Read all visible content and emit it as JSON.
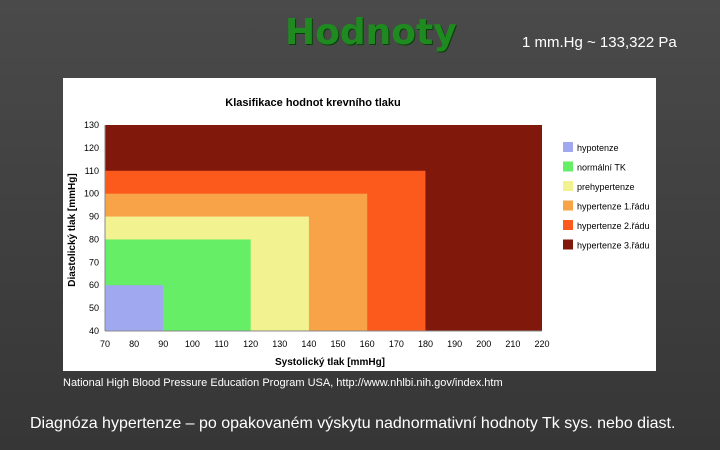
{
  "slide": {
    "title": "Hodnoty",
    "unit_note": "1 mm.Hg ~ 133,322 Pa",
    "source_note": "National High Blood Pressure Education Program USA, http://www.nhlbi.nih.gov/index.htm",
    "diagnosis_note": "Diagnóza hypertenze – po opakovaném  výskytu nadnormativní hodnoty Tk sys. nebo diast."
  },
  "colors": {
    "title": "#1f8a1f",
    "background": "#404040",
    "hypotenze": "#a0a8f0",
    "normalni": "#66ee66",
    "prehypertenze": "#f2f291",
    "hyp1": "#f8a347",
    "hyp2": "#fc5a1c",
    "hyp3": "#80180c"
  },
  "chart_data": {
    "type": "area",
    "title": "Klasifikace hodnot krevního tlaku",
    "xlabel": "Systolický tlak [mmHg]",
    "ylabel": "Diastolický tlak [mmHg]",
    "xlim": [
      70,
      220
    ],
    "ylim": [
      40,
      130
    ],
    "xticks": [
      70,
      80,
      90,
      100,
      110,
      120,
      130,
      140,
      150,
      160,
      170,
      180,
      190,
      200,
      210,
      220
    ],
    "yticks": [
      40,
      50,
      60,
      70,
      80,
      90,
      100,
      110,
      120,
      130
    ],
    "legend_position": "right",
    "zones": [
      {
        "name": "hypertenze 3.řádu",
        "color_key": "hyp3",
        "x_max": 220,
        "y_max": 130
      },
      {
        "name": "hypertenze 2.řádu",
        "color_key": "hyp2",
        "x_max": 180,
        "y_max": 110
      },
      {
        "name": "hypertenze 1.řádu",
        "color_key": "hyp1",
        "x_max": 160,
        "y_max": 100
      },
      {
        "name": "prehypertenze",
        "color_key": "prehypertenze",
        "x_max": 140,
        "y_max": 90
      },
      {
        "name": "normální TK",
        "color_key": "normalni",
        "x_max": 120,
        "y_max": 80
      },
      {
        "name": "hypotenze",
        "color_key": "hypotenze",
        "x_max": 90,
        "y_max": 60
      }
    ],
    "legend": [
      "hypotenze",
      "normální TK",
      "prehypertenze",
      "hypertenze 1.řádu",
      "hypertenze 2.řádu",
      "hypertenze 3.řádu"
    ]
  }
}
